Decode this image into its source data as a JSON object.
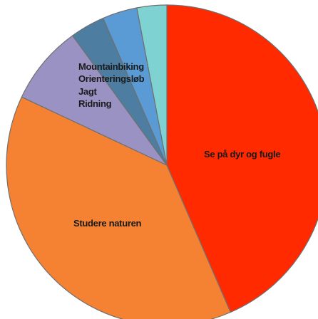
{
  "chart_data": {
    "type": "pie",
    "start_angle_deg": 0,
    "direction": "clockwise",
    "slices": [
      {
        "label": "Se på dyr og fugle",
        "value": 43.5,
        "color": "#ff2a00"
      },
      {
        "label": "Studere naturen",
        "value": 38.5,
        "color": "#f58232"
      },
      {
        "label": "Ridning",
        "value": 8,
        "color": "#9b92c4"
      },
      {
        "label": "Jagt",
        "value": 3.5,
        "color": "#4d7da0"
      },
      {
        "label": "Orienteringsløb",
        "value": 3.5,
        "color": "#5b9bd5"
      },
      {
        "label": "Mountainbiking",
        "value": 3,
        "color": "#7fd2d2"
      }
    ],
    "label_order_top_stack": [
      "Mountainbiking",
      "Orienteringsløb",
      "Jagt",
      "Ridning"
    ]
  }
}
